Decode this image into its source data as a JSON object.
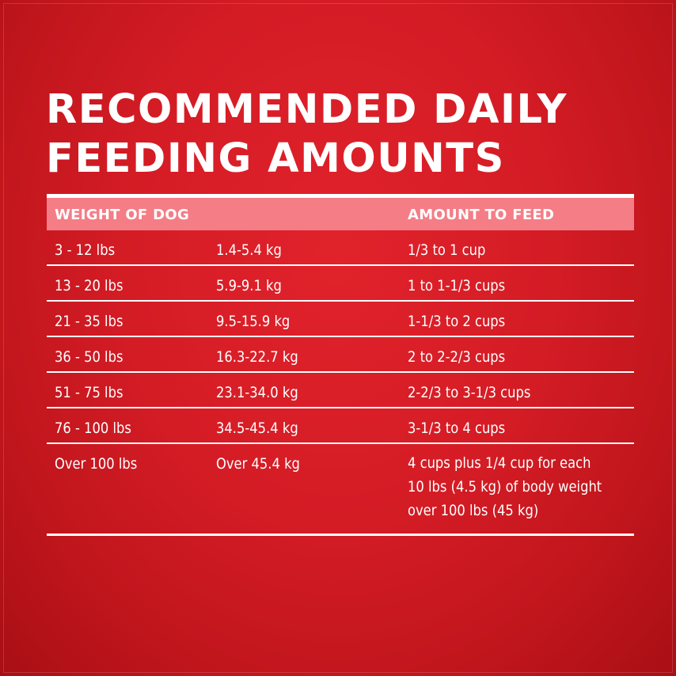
{
  "title": {
    "line1": "RECOMMENDED DAILY",
    "line2": "FEEDING AMOUNTS"
  },
  "table": {
    "headers": {
      "weight": "WEIGHT OF DOG",
      "amount": "AMOUNT TO FEED"
    },
    "rows": [
      {
        "lbs": "3 - 12 lbs",
        "kg": "1.4-5.4 kg",
        "amount": "1/3 to 1 cup"
      },
      {
        "lbs": "13 - 20 lbs",
        "kg": "5.9-9.1 kg",
        "amount": "1 to 1-1/3 cups"
      },
      {
        "lbs": "21 - 35 lbs",
        "kg": "9.5-15.9 kg",
        "amount": "1-1/3 to 2 cups"
      },
      {
        "lbs": "36 - 50 lbs",
        "kg": "16.3-22.7 kg",
        "amount": "2 to 2-2/3 cups"
      },
      {
        "lbs": "51 - 75 lbs",
        "kg": "23.1-34.0 kg",
        "amount": "2-2/3 to 3-1/3 cups"
      },
      {
        "lbs": "76 - 100 lbs",
        "kg": "34.5-45.4 kg",
        "amount": "3-1/3 to 4 cups"
      },
      {
        "lbs": "Over 100 lbs",
        "kg": "Over 45.4 kg",
        "amount": "4 cups plus 1/4 cup for each 10 lbs (4.5 kg) of body weight over 100 lbs (45 kg)"
      }
    ]
  },
  "colors": {
    "background": "#d41c25",
    "header_band": "#f47d86",
    "text": "#ffffff"
  }
}
